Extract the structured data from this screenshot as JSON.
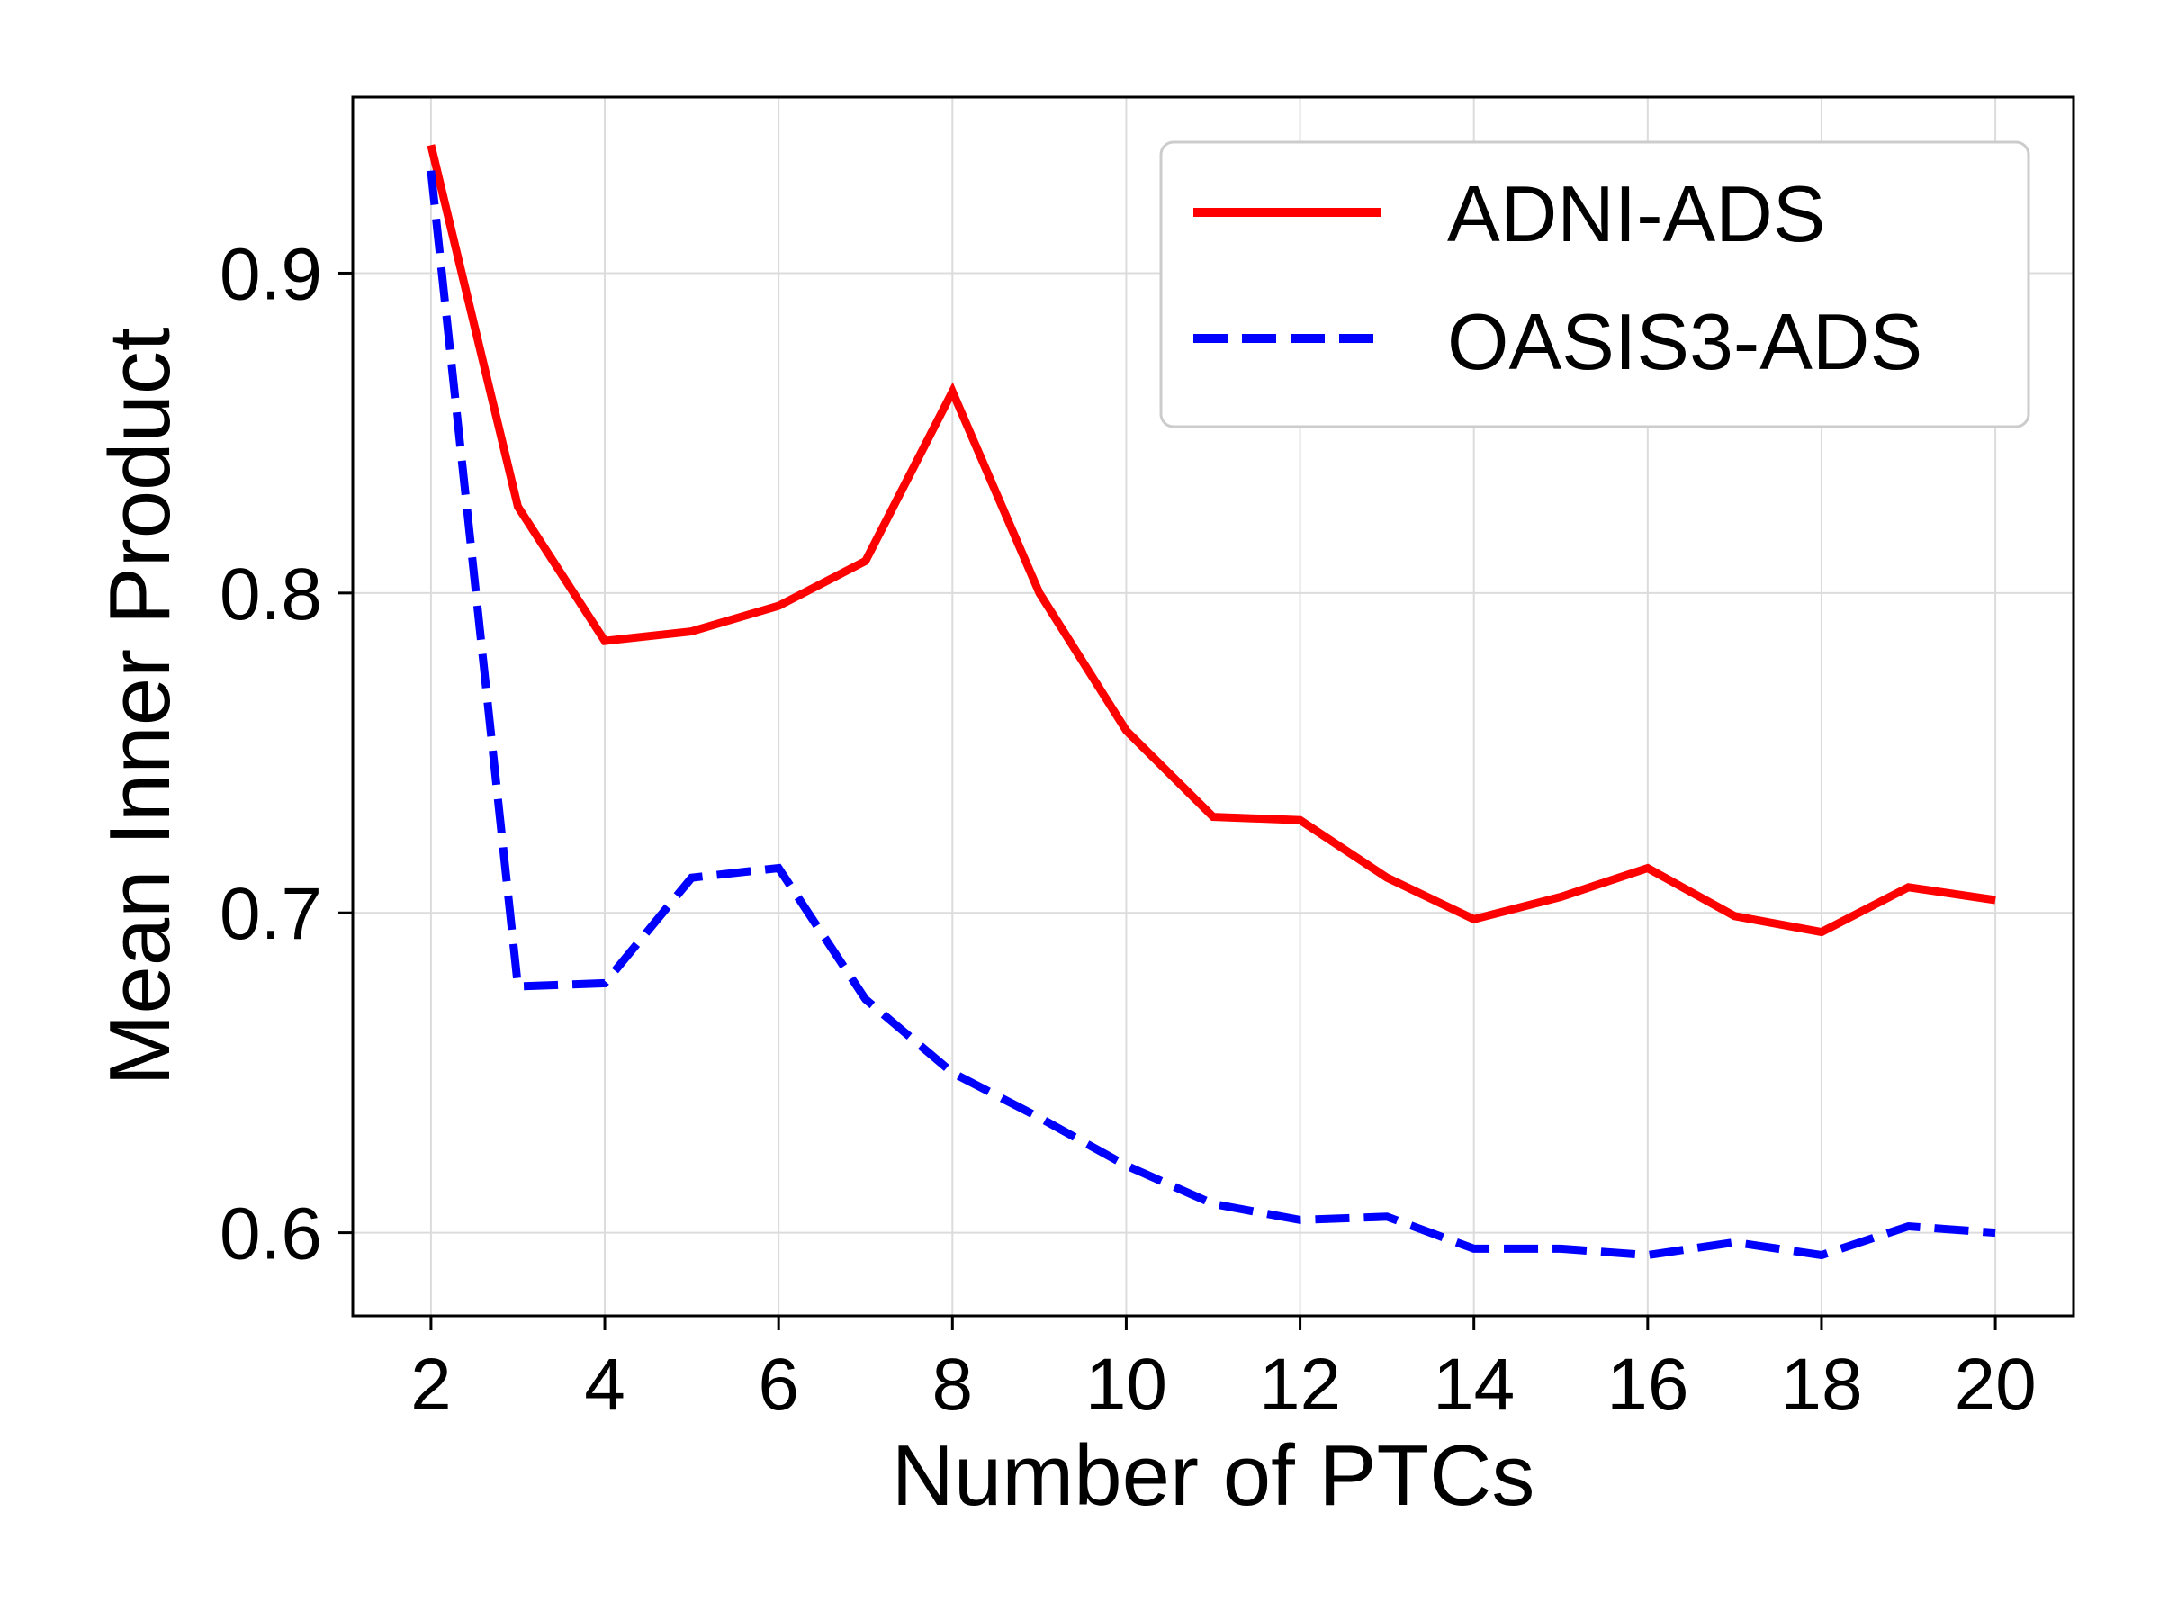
{
  "chart_data": {
    "type": "line",
    "title": "",
    "xlabel": "Number of PTCs",
    "ylabel": "Mean Inner Product",
    "x": [
      2,
      3,
      4,
      5,
      6,
      7,
      8,
      9,
      10,
      11,
      12,
      13,
      14,
      15,
      16,
      17,
      18,
      19,
      20
    ],
    "xlim": [
      1.1,
      20.9
    ],
    "ylim": [
      0.574,
      0.955
    ],
    "xticks": [
      2,
      4,
      6,
      8,
      10,
      12,
      14,
      16,
      18,
      20
    ],
    "yticks": [
      0.6,
      0.7,
      0.8,
      0.9
    ],
    "xtick_labels": [
      "2",
      "4",
      "6",
      "8",
      "10",
      "12",
      "14",
      "16",
      "18",
      "20"
    ],
    "ytick_labels": [
      "0.6",
      "0.7",
      "0.8",
      "0.9"
    ],
    "grid": true,
    "legend_position": "top-right",
    "series": [
      {
        "name": "ADNI-ADS",
        "color": "#ff0000",
        "style": "solid",
        "values": [
          0.94,
          0.827,
          0.785,
          0.788,
          0.796,
          0.81,
          0.863,
          0.8,
          0.757,
          0.73,
          0.729,
          0.711,
          0.698,
          0.705,
          0.714,
          0.699,
          0.694,
          0.708,
          0.704
        ]
      },
      {
        "name": "OASIS3-ADS",
        "color": "#0000ff",
        "style": "dashed",
        "values": [
          0.932,
          0.677,
          0.678,
          0.711,
          0.714,
          0.673,
          0.65,
          0.636,
          0.621,
          0.609,
          0.604,
          0.605,
          0.595,
          0.595,
          0.593,
          0.597,
          0.593,
          0.602,
          0.6
        ]
      }
    ]
  }
}
